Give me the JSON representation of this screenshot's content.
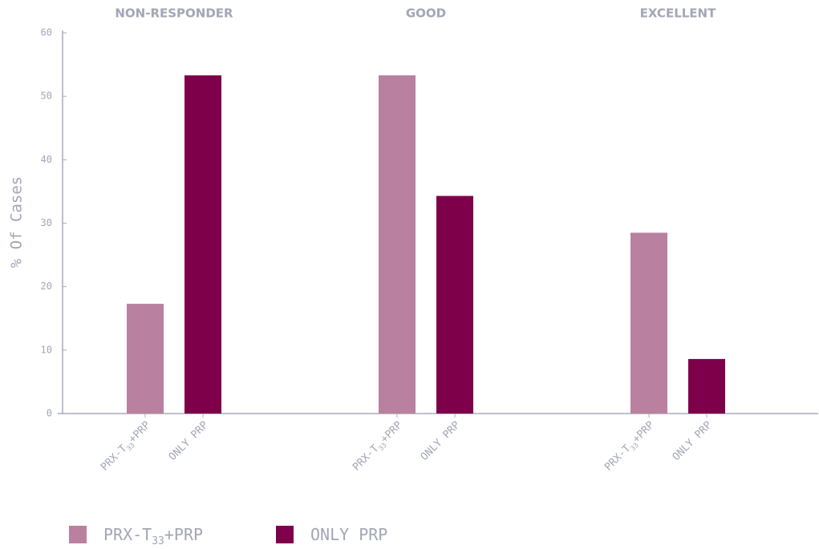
{
  "chart_data": {
    "type": "bar",
    "ylabel": "% Of Cases",
    "categories": [
      "NON-RESPONDER",
      "GOOD",
      "EXCELLENT"
    ],
    "series": [
      {
        "name": "PRX-T33+PRP",
        "color": "#b980a0",
        "values": [
          17.3,
          53.3,
          28.5
        ]
      },
      {
        "name": "ONLY PRP",
        "color": "#7e004a",
        "values": [
          53.3,
          34.3,
          8.6
        ]
      }
    ],
    "ylim": [
      0,
      60
    ],
    "yticks": [
      0,
      10,
      20,
      30,
      40,
      50,
      60
    ],
    "legend": "bottom-left"
  }
}
